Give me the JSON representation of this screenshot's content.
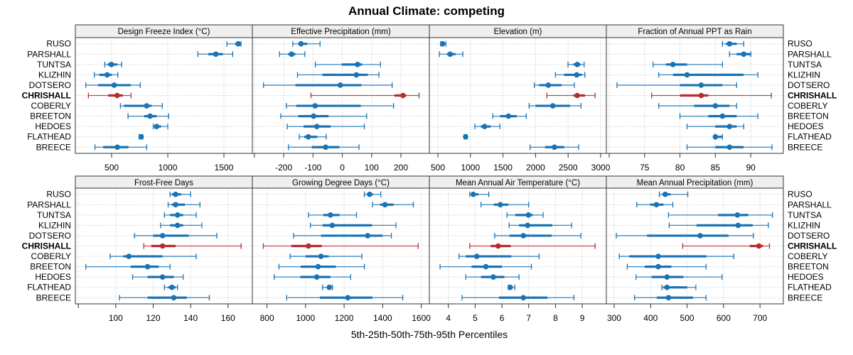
{
  "chart_data": {
    "type": "dotplot-percentile-intervals",
    "title": "Annual Climate: competing",
    "xlabel": "5th-25th-50th-75th-95th Percentiles",
    "ylabel": "",
    "percentiles": [
      "p5",
      "p25",
      "p50",
      "p75",
      "p95"
    ],
    "stations": [
      "RUSO",
      "PARSHALL",
      "TUNTSA",
      "KLIZHIN",
      "DOTSERO",
      "CHRISHALL",
      "COBERLY",
      "BREETON",
      "HEDOES",
      "FLATHEAD",
      "BREECE"
    ],
    "highlight_station": "CHRISHALL",
    "colors": {
      "default": "#1a73b5",
      "highlight": "#b82a30",
      "strip_fill": "#efefef",
      "grid": "#c4c4c4",
      "border": "#333333"
    },
    "grid": true,
    "layout": "4 columns x 2 rows, shared station axis on left and right",
    "panels": [
      {
        "title": "Design Freeze Index (°C)",
        "xlim": [
          177,
          1753
        ],
        "ticks": [
          {
            "value": 500,
            "label": "500"
          },
          {
            "value": 1000,
            "label": "1000"
          },
          {
            "value": 1500,
            "label": "1500"
          }
        ],
        "values": [
          [
            1527,
            1600,
            1627,
            1645,
            1652
          ],
          [
            1268,
            1360,
            1428,
            1490,
            1578
          ],
          [
            439,
            465,
            498,
            550,
            589
          ],
          [
            346,
            390,
            460,
            500,
            555
          ],
          [
            270,
            380,
            523,
            670,
            755
          ],
          [
            293,
            470,
            549,
            600,
            673
          ],
          [
            578,
            610,
            812,
            856,
            951
          ],
          [
            646,
            790,
            842,
            900,
            1008
          ],
          [
            871,
            880,
            901,
            940,
            1000
          ],
          [
            745,
            755,
            763,
            770,
            778
          ],
          [
            352,
            425,
            551,
            650,
            812
          ]
        ]
      },
      {
        "title": "Effective Precipitation (mm)",
        "xlim": [
          -307,
          297
        ],
        "ticks": [
          {
            "value": -300,
            "label": ""
          },
          {
            "value": -200,
            "label": "-200"
          },
          {
            "value": -100,
            "label": "-100"
          },
          {
            "value": 0,
            "label": "0"
          },
          {
            "value": 100,
            "label": "100"
          },
          {
            "value": 200,
            "label": "200"
          }
        ],
        "values": [
          [
            -169,
            -150,
            -141,
            -120,
            -76
          ],
          [
            -214,
            -185,
            -173,
            -160,
            -128
          ],
          [
            -92,
            -2,
            52,
            68,
            130
          ],
          [
            -153,
            -68,
            48,
            87,
            125
          ],
          [
            -269,
            -160,
            -7,
            65,
            170
          ],
          [
            -107,
            178,
            207,
            218,
            262
          ],
          [
            -191,
            -157,
            -93,
            63,
            175
          ],
          [
            -210,
            -150,
            -98,
            -47,
            83
          ],
          [
            -188,
            -132,
            -87,
            -40,
            75
          ],
          [
            -147,
            -130,
            -116,
            -85,
            -55
          ],
          [
            -184,
            -104,
            -57,
            -10,
            57
          ]
        ]
      },
      {
        "title": "Elevation (m)",
        "xlim": [
          369,
          3087
        ],
        "ticks": [
          {
            "value": 500,
            "label": "500"
          },
          {
            "value": 1000,
            "label": "1000"
          },
          {
            "value": 1500,
            "label": "1500"
          },
          {
            "value": 2000,
            "label": "2000"
          },
          {
            "value": 2500,
            "label": "2500"
          },
          {
            "value": 3000,
            "label": "3000"
          }
        ],
        "values": [
          [
            544,
            560,
            573,
            600,
            623
          ],
          [
            525,
            640,
            689,
            770,
            882
          ],
          [
            2498,
            2580,
            2640,
            2690,
            2746
          ],
          [
            2305,
            2440,
            2632,
            2710,
            2757
          ],
          [
            1981,
            2055,
            2196,
            2400,
            2596
          ],
          [
            2174,
            2580,
            2640,
            2760,
            2913
          ],
          [
            1901,
            2000,
            2265,
            2530,
            2698
          ],
          [
            1344,
            1455,
            1584,
            1710,
            1857
          ],
          [
            1068,
            1160,
            1217,
            1310,
            1453
          ],
          [
            905,
            915,
            926,
            935,
            945
          ],
          [
            1916,
            2145,
            2290,
            2440,
            2662
          ]
        ]
      },
      {
        "title": "Fraction of Annual PPT as Rain",
        "xlim": [
          69.6,
          94.6
        ],
        "ticks": [
          {
            "value": 70,
            "label": ""
          },
          {
            "value": 75,
            "label": "75"
          },
          {
            "value": 80,
            "label": "80"
          },
          {
            "value": 85,
            "label": "85"
          },
          {
            "value": 90,
            "label": "90"
          }
        ],
        "values": [
          [
            86,
            86.5,
            87,
            88,
            89
          ],
          [
            87,
            88,
            89,
            90,
            90
          ],
          [
            76.2,
            78,
            79,
            81,
            86
          ],
          [
            77,
            79,
            81,
            89,
            91
          ],
          [
            71.1,
            80,
            83,
            86,
            88
          ],
          [
            76,
            80,
            83,
            84,
            92.9
          ],
          [
            77,
            82,
            85,
            87,
            88
          ],
          [
            80,
            84,
            86,
            88,
            91
          ],
          [
            81,
            85,
            87,
            88,
            89
          ],
          [
            85,
            85,
            85,
            86,
            86
          ],
          [
            81,
            85,
            87,
            89,
            93
          ]
        ]
      },
      {
        "title": "Frost-Free Days",
        "xlim": [
          78.4,
          173
        ],
        "ticks": [
          {
            "value": 80,
            "label": ""
          },
          {
            "value": 100,
            "label": "100"
          },
          {
            "value": 120,
            "label": "120"
          },
          {
            "value": 140,
            "label": "140"
          },
          {
            "value": 160,
            "label": "160"
          }
        ],
        "values": [
          [
            129,
            130,
            132,
            135,
            140
          ],
          [
            128,
            130,
            132,
            137,
            145
          ],
          [
            126,
            129,
            133,
            136,
            143
          ],
          [
            124,
            129,
            133,
            136,
            146
          ],
          [
            110,
            120,
            125,
            139,
            154
          ],
          [
            115,
            119,
            125,
            132,
            167
          ],
          [
            97,
            104,
            107,
            125,
            143
          ],
          [
            84,
            108,
            117,
            123,
            129
          ],
          [
            109,
            117,
            125,
            131,
            136
          ],
          [
            126,
            128,
            130,
            132,
            133
          ],
          [
            102,
            117,
            131,
            138,
            150
          ]
        ]
      },
      {
        "title": "Growing Degree Days (°C)",
        "xlim": [
          724,
          1642
        ],
        "ticks": [
          {
            "value": 800,
            "label": "800"
          },
          {
            "value": 1000,
            "label": "1000"
          },
          {
            "value": 1200,
            "label": "1200"
          },
          {
            "value": 1400,
            "label": "1400"
          },
          {
            "value": 1600,
            "label": "1600"
          }
        ],
        "values": [
          [
            1305,
            1320,
            1332,
            1350,
            1390
          ],
          [
            1347,
            1387,
            1412,
            1457,
            1559
          ],
          [
            1015,
            1092,
            1129,
            1176,
            1264
          ],
          [
            1025,
            1088,
            1138,
            1344,
            1469
          ],
          [
            938,
            1080,
            1322,
            1400,
            1445
          ],
          [
            781,
            926,
            1015,
            1084,
            1584
          ],
          [
            920,
            1000,
            1080,
            1120,
            1292
          ],
          [
            862,
            975,
            1065,
            1157,
            1305
          ],
          [
            837,
            973,
            1058,
            1129,
            1234
          ],
          [
            1088,
            1110,
            1123,
            1135,
            1139
          ],
          [
            902,
            1074,
            1219,
            1347,
            1504
          ]
        ]
      },
      {
        "title": "Mean Annual Air Temperature (°C)",
        "xlim": [
          3.29,
          9.9
        ],
        "ticks": [
          {
            "value": 4,
            "label": "4"
          },
          {
            "value": 5,
            "label": "5"
          },
          {
            "value": 6,
            "label": "6"
          },
          {
            "value": 7,
            "label": "7"
          },
          {
            "value": 8,
            "label": "8"
          },
          {
            "value": 9,
            "label": "9"
          }
        ],
        "values": [
          [
            4.8,
            4.87,
            4.93,
            5.12,
            5.51
          ],
          [
            5.22,
            5.7,
            5.94,
            6.24,
            7.0
          ],
          [
            6.19,
            6.5,
            6.99,
            7.15,
            7.54
          ],
          [
            6.27,
            6.64,
            6.96,
            7.88,
            8.6
          ],
          [
            5.73,
            6.28,
            6.8,
            7.86,
            8.95
          ],
          [
            4.8,
            5.58,
            5.86,
            6.33,
            9.48
          ],
          [
            4.4,
            4.65,
            5.06,
            6.35,
            7.39
          ],
          [
            3.69,
            4.87,
            5.4,
            6.0,
            7.1
          ],
          [
            4.65,
            5.22,
            5.68,
            6.09,
            6.64
          ],
          [
            6.24,
            6.27,
            6.31,
            6.36,
            6.48
          ],
          [
            4.51,
            5.89,
            6.8,
            7.7,
            8.69
          ]
        ]
      },
      {
        "title": "Mean Annual Precipitation (mm)",
        "xlim": [
          278.6,
          764
        ],
        "ticks": [
          {
            "value": 300,
            "label": "300"
          },
          {
            "value": 400,
            "label": "400"
          },
          {
            "value": 500,
            "label": "500"
          },
          {
            "value": 600,
            "label": "600"
          },
          {
            "value": 700,
            "label": "700"
          }
        ],
        "values": [
          [
            424,
            432,
            440,
            455,
            502
          ],
          [
            362,
            399,
            416,
            435,
            461
          ],
          [
            449,
            585,
            638,
            668,
            734
          ],
          [
            451,
            526,
            640,
            680,
            723
          ],
          [
            306,
            390,
            536,
            614,
            682
          ],
          [
            488,
            672,
            697,
            708,
            726
          ],
          [
            314,
            341,
            421,
            553,
            628
          ],
          [
            336,
            384,
            421,
            457,
            552
          ],
          [
            360,
            403,
            445,
            490,
            596
          ],
          [
            431,
            435,
            445,
            500,
            524
          ],
          [
            356,
            417,
            449,
            516,
            552
          ]
        ]
      }
    ]
  }
}
